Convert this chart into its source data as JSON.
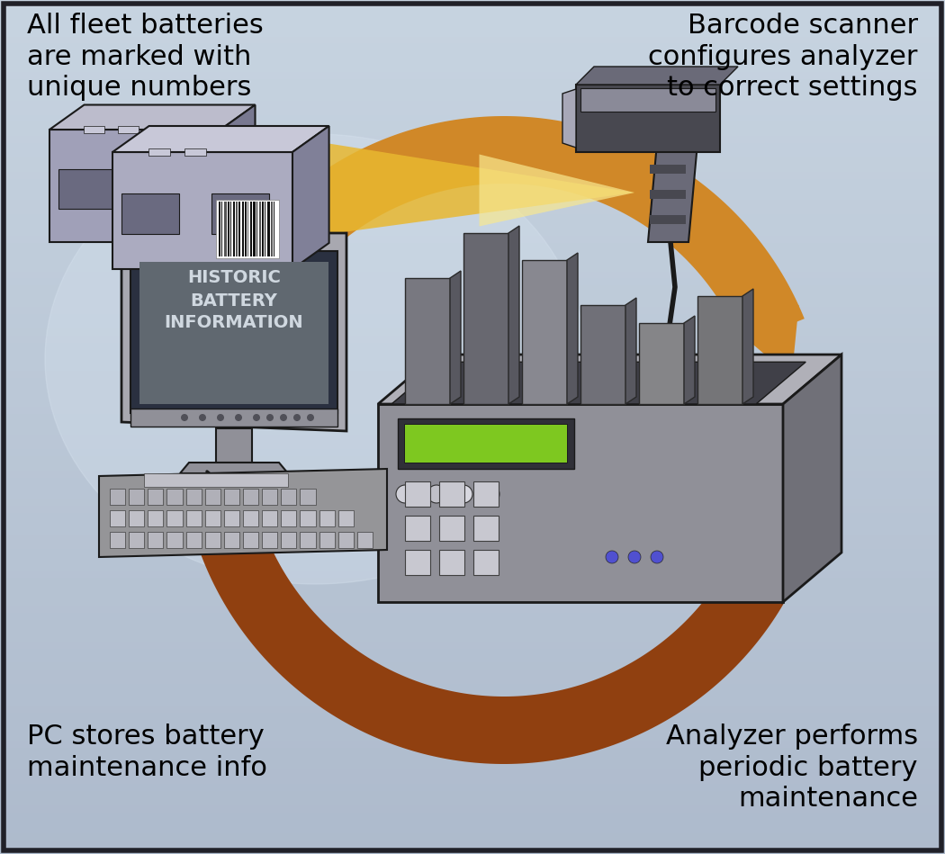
{
  "text_topleft": "All fleet batteries\nare marked with\nunique numbers",
  "text_topright": "Barcode scanner\nconfigures analyzer\nto correct settings",
  "text_bottomleft": "PC stores battery\nmaintenance info",
  "text_bottomright": "Analyzer performs\nperiodic battery\nmaintenance",
  "monitor_text": "HISTORIC\nBATTERY\nINFORMATION",
  "text_fontsize": 22,
  "monitor_text_fontsize": 14,
  "green_display": "#7ec820",
  "arrow_outer_color": "#b06020",
  "arrow_inner_color": "#d08030",
  "arrow_bottom_color": "#8B4010",
  "beam_color1": "#e8b830",
  "beam_color2": "#f5d880"
}
